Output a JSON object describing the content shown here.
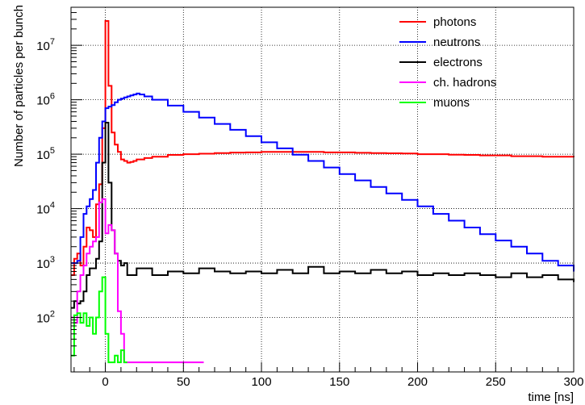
{
  "chart_data": {
    "type": "line",
    "xlabel": "time [ns]",
    "ylabel": "Number of particles per bunch",
    "xlim": [
      -22,
      300
    ],
    "ylim": [
      10,
      50000000
    ],
    "y_scale": "log",
    "x_ticks": [
      0,
      50,
      100,
      150,
      200,
      250,
      300
    ],
    "y_ticks": [
      {
        "value": 100,
        "mantissa": "10",
        "exp": "2"
      },
      {
        "value": 1000,
        "mantissa": "10",
        "exp": "3"
      },
      {
        "value": 10000,
        "mantissa": "10",
        "exp": "4"
      },
      {
        "value": 100000,
        "mantissa": "10",
        "exp": "5"
      },
      {
        "value": 1000000,
        "mantissa": "10",
        "exp": "6"
      },
      {
        "value": 10000000,
        "mantissa": "10",
        "exp": "7"
      }
    ],
    "grid": true,
    "legend_position": "top-right",
    "series": [
      {
        "name": "photons",
        "color": "#ff0000",
        "x": [
          -22,
          -20,
          -18,
          -16,
          -14,
          -12,
          -10,
          -8,
          -6,
          -4,
          -2,
          0,
          2,
          4,
          6,
          8,
          10,
          12,
          14,
          16,
          18,
          20,
          25,
          30,
          40,
          50,
          60,
          70,
          80,
          90,
          100,
          110,
          120,
          130,
          140,
          150,
          160,
          170,
          180,
          190,
          200,
          210,
          220,
          230,
          240,
          250,
          260,
          270,
          280,
          290,
          300
        ],
        "y": [
          600,
          1200,
          1500,
          900,
          2000,
          4500,
          4000,
          3000,
          12000,
          28000,
          300000,
          28000000,
          1800000,
          250000,
          150000,
          110000,
          80000,
          75000,
          70000,
          72000,
          75000,
          80000,
          85000,
          90000,
          97000,
          100000,
          102000,
          105000,
          107000,
          108000,
          110000,
          110000,
          110000,
          110000,
          108000,
          108000,
          106000,
          105000,
          104000,
          103000,
          100000,
          100000,
          98000,
          97000,
          95000,
          95000,
          92000,
          92000,
          90000,
          90000,
          88000
        ]
      },
      {
        "name": "neutrons",
        "color": "#0000ff",
        "x": [
          -22,
          -20,
          -18,
          -16,
          -14,
          -12,
          -10,
          -8,
          -6,
          -4,
          -2,
          0,
          2,
          4,
          6,
          8,
          10,
          12,
          14,
          16,
          18,
          20,
          22,
          25,
          30,
          40,
          50,
          60,
          70,
          80,
          90,
          100,
          110,
          120,
          130,
          140,
          150,
          160,
          170,
          180,
          190,
          200,
          210,
          220,
          230,
          240,
          250,
          260,
          270,
          280,
          290,
          300
        ],
        "y": [
          1000,
          1000,
          1100,
          3000,
          8000,
          11000,
          15000,
          22000,
          70000,
          200000,
          400000,
          700000,
          750000,
          800000,
          900000,
          1000000,
          1050000,
          1100000,
          1150000,
          1200000,
          1250000,
          1300000,
          1250000,
          1150000,
          1000000,
          780000,
          600000,
          470000,
          360000,
          280000,
          215000,
          165000,
          128000,
          98000,
          75000,
          57000,
          43000,
          33000,
          25000,
          19000,
          14500,
          11000,
          8000,
          6000,
          4500,
          3400,
          2600,
          2000,
          1500,
          1100,
          900,
          700
        ]
      },
      {
        "name": "electrons",
        "color": "#000000",
        "x": [
          -22,
          -20,
          -18,
          -16,
          -14,
          -12,
          -10,
          -8,
          -6,
          -4,
          -2,
          0,
          2,
          4,
          6,
          8,
          10,
          12,
          14,
          20,
          30,
          40,
          50,
          60,
          70,
          80,
          90,
          100,
          110,
          120,
          130,
          140,
          150,
          160,
          170,
          180,
          190,
          200,
          210,
          220,
          230,
          240,
          250,
          260,
          270,
          280,
          290,
          300
        ],
        "y": [
          150,
          200,
          180,
          200,
          300,
          600,
          800,
          800,
          1200,
          2500,
          70000,
          380000,
          30000,
          4000,
          1500,
          1100,
          900,
          1000,
          600,
          800,
          600,
          700,
          650,
          800,
          700,
          650,
          700,
          650,
          750,
          650,
          850,
          650,
          700,
          650,
          750,
          650,
          700,
          600,
          650,
          600,
          650,
          600,
          550,
          650,
          550,
          600,
          500,
          450
        ]
      },
      {
        "name": "ch. hadrons",
        "color": "#ff00ff",
        "x": [
          -22,
          -20,
          -18,
          -16,
          -14,
          -12,
          -10,
          -8,
          -6,
          -4,
          -2,
          0,
          2,
          4,
          6,
          8,
          10,
          12,
          14,
          16,
          18,
          20,
          55,
          57,
          59,
          61
        ],
        "y": [
          100,
          80,
          300,
          600,
          900,
          1500,
          2000,
          2500,
          3000,
          13000,
          15000,
          3500,
          5000,
          4000,
          1500,
          130,
          50,
          15,
          15,
          15,
          15,
          15,
          15,
          15,
          15,
          15
        ]
      },
      {
        "name": "muons",
        "color": "#00ff00",
        "x": [
          -22,
          -20,
          -18,
          -16,
          -14,
          -12,
          -10,
          -8,
          -6,
          -4,
          -2,
          0,
          2,
          4,
          6,
          8,
          10,
          12
        ],
        "y": [
          20,
          110,
          120,
          80,
          120,
          70,
          100,
          50,
          100,
          300,
          550,
          50,
          15,
          15,
          20,
          15,
          25,
          15
        ]
      }
    ]
  }
}
